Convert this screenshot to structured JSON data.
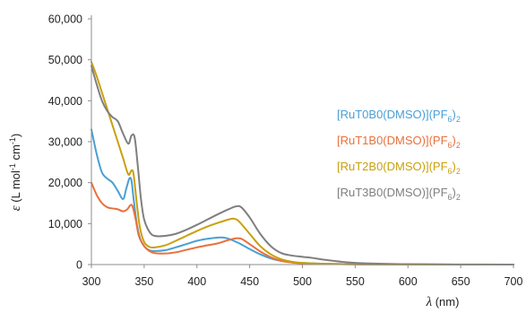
{
  "chart_data": {
    "type": "line",
    "xlabel": {
      "symbol": "λ",
      "unit": " (nm)"
    },
    "ylabel": {
      "symbol": "ε",
      "pre": " (L mol",
      "sup1": "-1",
      "mid": " cm",
      "sup2": "-1",
      "post": ")"
    },
    "xlim": [
      300,
      700
    ],
    "ylim": [
      0,
      60000
    ],
    "x_ticks": [
      300,
      350,
      400,
      450,
      500,
      550,
      600,
      650,
      700
    ],
    "y_ticks": [
      0,
      10000,
      20000,
      30000,
      40000,
      50000,
      60000
    ],
    "y_tick_labels": [
      "0",
      "10,000",
      "20,000",
      "30,000",
      "40,000",
      "50,000",
      "60,000"
    ],
    "grid": false,
    "legend_position": "right",
    "series": [
      {
        "name": "[RuT0B0(DMSO)](PF6)2",
        "label_main": "[RuT0B0(DMSO)](PF",
        "label_sub": "6",
        "label_end": ")",
        "label_sub2": "2",
        "color": "#4a9fd5",
        "points": [
          [
            300,
            33000
          ],
          [
            305,
            27000
          ],
          [
            310,
            22500
          ],
          [
            315,
            21000
          ],
          [
            320,
            20000
          ],
          [
            325,
            18000
          ],
          [
            330,
            16000
          ],
          [
            333,
            18500
          ],
          [
            336,
            21000
          ],
          [
            338,
            20500
          ],
          [
            340,
            16000
          ],
          [
            343,
            10000
          ],
          [
            346,
            6500
          ],
          [
            350,
            4500
          ],
          [
            355,
            3500
          ],
          [
            360,
            3300
          ],
          [
            370,
            3500
          ],
          [
            380,
            4200
          ],
          [
            390,
            5000
          ],
          [
            400,
            5800
          ],
          [
            410,
            6300
          ],
          [
            420,
            6600
          ],
          [
            425,
            6600
          ],
          [
            430,
            6300
          ],
          [
            440,
            5200
          ],
          [
            450,
            3800
          ],
          [
            460,
            2500
          ],
          [
            470,
            1500
          ],
          [
            480,
            900
          ],
          [
            490,
            600
          ],
          [
            500,
            400
          ],
          [
            520,
            200
          ],
          [
            550,
            80
          ],
          [
            600,
            30
          ],
          [
            650,
            10
          ],
          [
            700,
            0
          ]
        ]
      },
      {
        "name": "[RuT1B0(DMSO)](PF6)2",
        "label_main": "[RuT1B0(DMSO)](PF",
        "label_sub": "6",
        "label_end": ")",
        "label_sub2": "2",
        "color": "#e8713c",
        "points": [
          [
            300,
            20000
          ],
          [
            305,
            17000
          ],
          [
            310,
            15000
          ],
          [
            315,
            14000
          ],
          [
            320,
            13700
          ],
          [
            325,
            13500
          ],
          [
            330,
            13000
          ],
          [
            334,
            13500
          ],
          [
            337,
            14500
          ],
          [
            339,
            14200
          ],
          [
            342,
            11000
          ],
          [
            345,
            7000
          ],
          [
            350,
            4500
          ],
          [
            355,
            3300
          ],
          [
            360,
            2800
          ],
          [
            370,
            2700
          ],
          [
            380,
            3000
          ],
          [
            390,
            3600
          ],
          [
            400,
            4200
          ],
          [
            410,
            4700
          ],
          [
            420,
            5200
          ],
          [
            430,
            6000
          ],
          [
            437,
            6400
          ],
          [
            442,
            6300
          ],
          [
            450,
            5000
          ],
          [
            460,
            3200
          ],
          [
            470,
            1800
          ],
          [
            480,
            900
          ],
          [
            490,
            500
          ],
          [
            500,
            300
          ],
          [
            520,
            150
          ],
          [
            550,
            60
          ],
          [
            600,
            20
          ],
          [
            650,
            5
          ],
          [
            700,
            0
          ]
        ]
      },
      {
        "name": "[RuT2B0(DMSO)](PF6)2",
        "label_main": "[RuT2B0(DMSO)](PF",
        "label_sub": "6",
        "label_end": ")",
        "label_sub2": "2",
        "color": "#c9a00e",
        "points": [
          [
            300,
            49500
          ],
          [
            305,
            46000
          ],
          [
            310,
            42000
          ],
          [
            315,
            38000
          ],
          [
            320,
            34000
          ],
          [
            325,
            30000
          ],
          [
            330,
            26000
          ],
          [
            335,
            22000
          ],
          [
            338,
            23000
          ],
          [
            340,
            22000
          ],
          [
            343,
            15000
          ],
          [
            346,
            9000
          ],
          [
            350,
            5500
          ],
          [
            355,
            4300
          ],
          [
            360,
            4200
          ],
          [
            370,
            4700
          ],
          [
            380,
            5800
          ],
          [
            390,
            7000
          ],
          [
            400,
            8200
          ],
          [
            410,
            9300
          ],
          [
            420,
            10200
          ],
          [
            430,
            11000
          ],
          [
            435,
            11200
          ],
          [
            440,
            10500
          ],
          [
            450,
            7500
          ],
          [
            460,
            4500
          ],
          [
            470,
            2500
          ],
          [
            480,
            1300
          ],
          [
            490,
            700
          ],
          [
            500,
            400
          ],
          [
            520,
            200
          ],
          [
            550,
            80
          ],
          [
            600,
            20
          ],
          [
            650,
            5
          ],
          [
            700,
            0
          ]
        ]
      },
      {
        "name": "[RuT3B0(DMSO)](PF6)2",
        "label_main": "[RuT3B0(DMSO)](PF",
        "label_sub": "6",
        "label_end": ")",
        "label_sub2": "2",
        "color": "#7f7f7f",
        "points": [
          [
            300,
            48500
          ],
          [
            305,
            44000
          ],
          [
            310,
            40000
          ],
          [
            315,
            37500
          ],
          [
            320,
            36000
          ],
          [
            325,
            35000
          ],
          [
            330,
            32000
          ],
          [
            335,
            29500
          ],
          [
            338,
            31500
          ],
          [
            341,
            31000
          ],
          [
            344,
            24000
          ],
          [
            347,
            16000
          ],
          [
            350,
            11000
          ],
          [
            355,
            8000
          ],
          [
            360,
            7000
          ],
          [
            370,
            7000
          ],
          [
            380,
            7500
          ],
          [
            390,
            8500
          ],
          [
            400,
            9700
          ],
          [
            410,
            11000
          ],
          [
            420,
            12300
          ],
          [
            430,
            13500
          ],
          [
            437,
            14200
          ],
          [
            442,
            14000
          ],
          [
            450,
            11500
          ],
          [
            460,
            7500
          ],
          [
            470,
            4500
          ],
          [
            480,
            2800
          ],
          [
            490,
            2200
          ],
          [
            500,
            1900
          ],
          [
            510,
            1600
          ],
          [
            520,
            1200
          ],
          [
            540,
            600
          ],
          [
            560,
            300
          ],
          [
            600,
            100
          ],
          [
            650,
            30
          ],
          [
            700,
            0
          ]
        ]
      }
    ]
  }
}
